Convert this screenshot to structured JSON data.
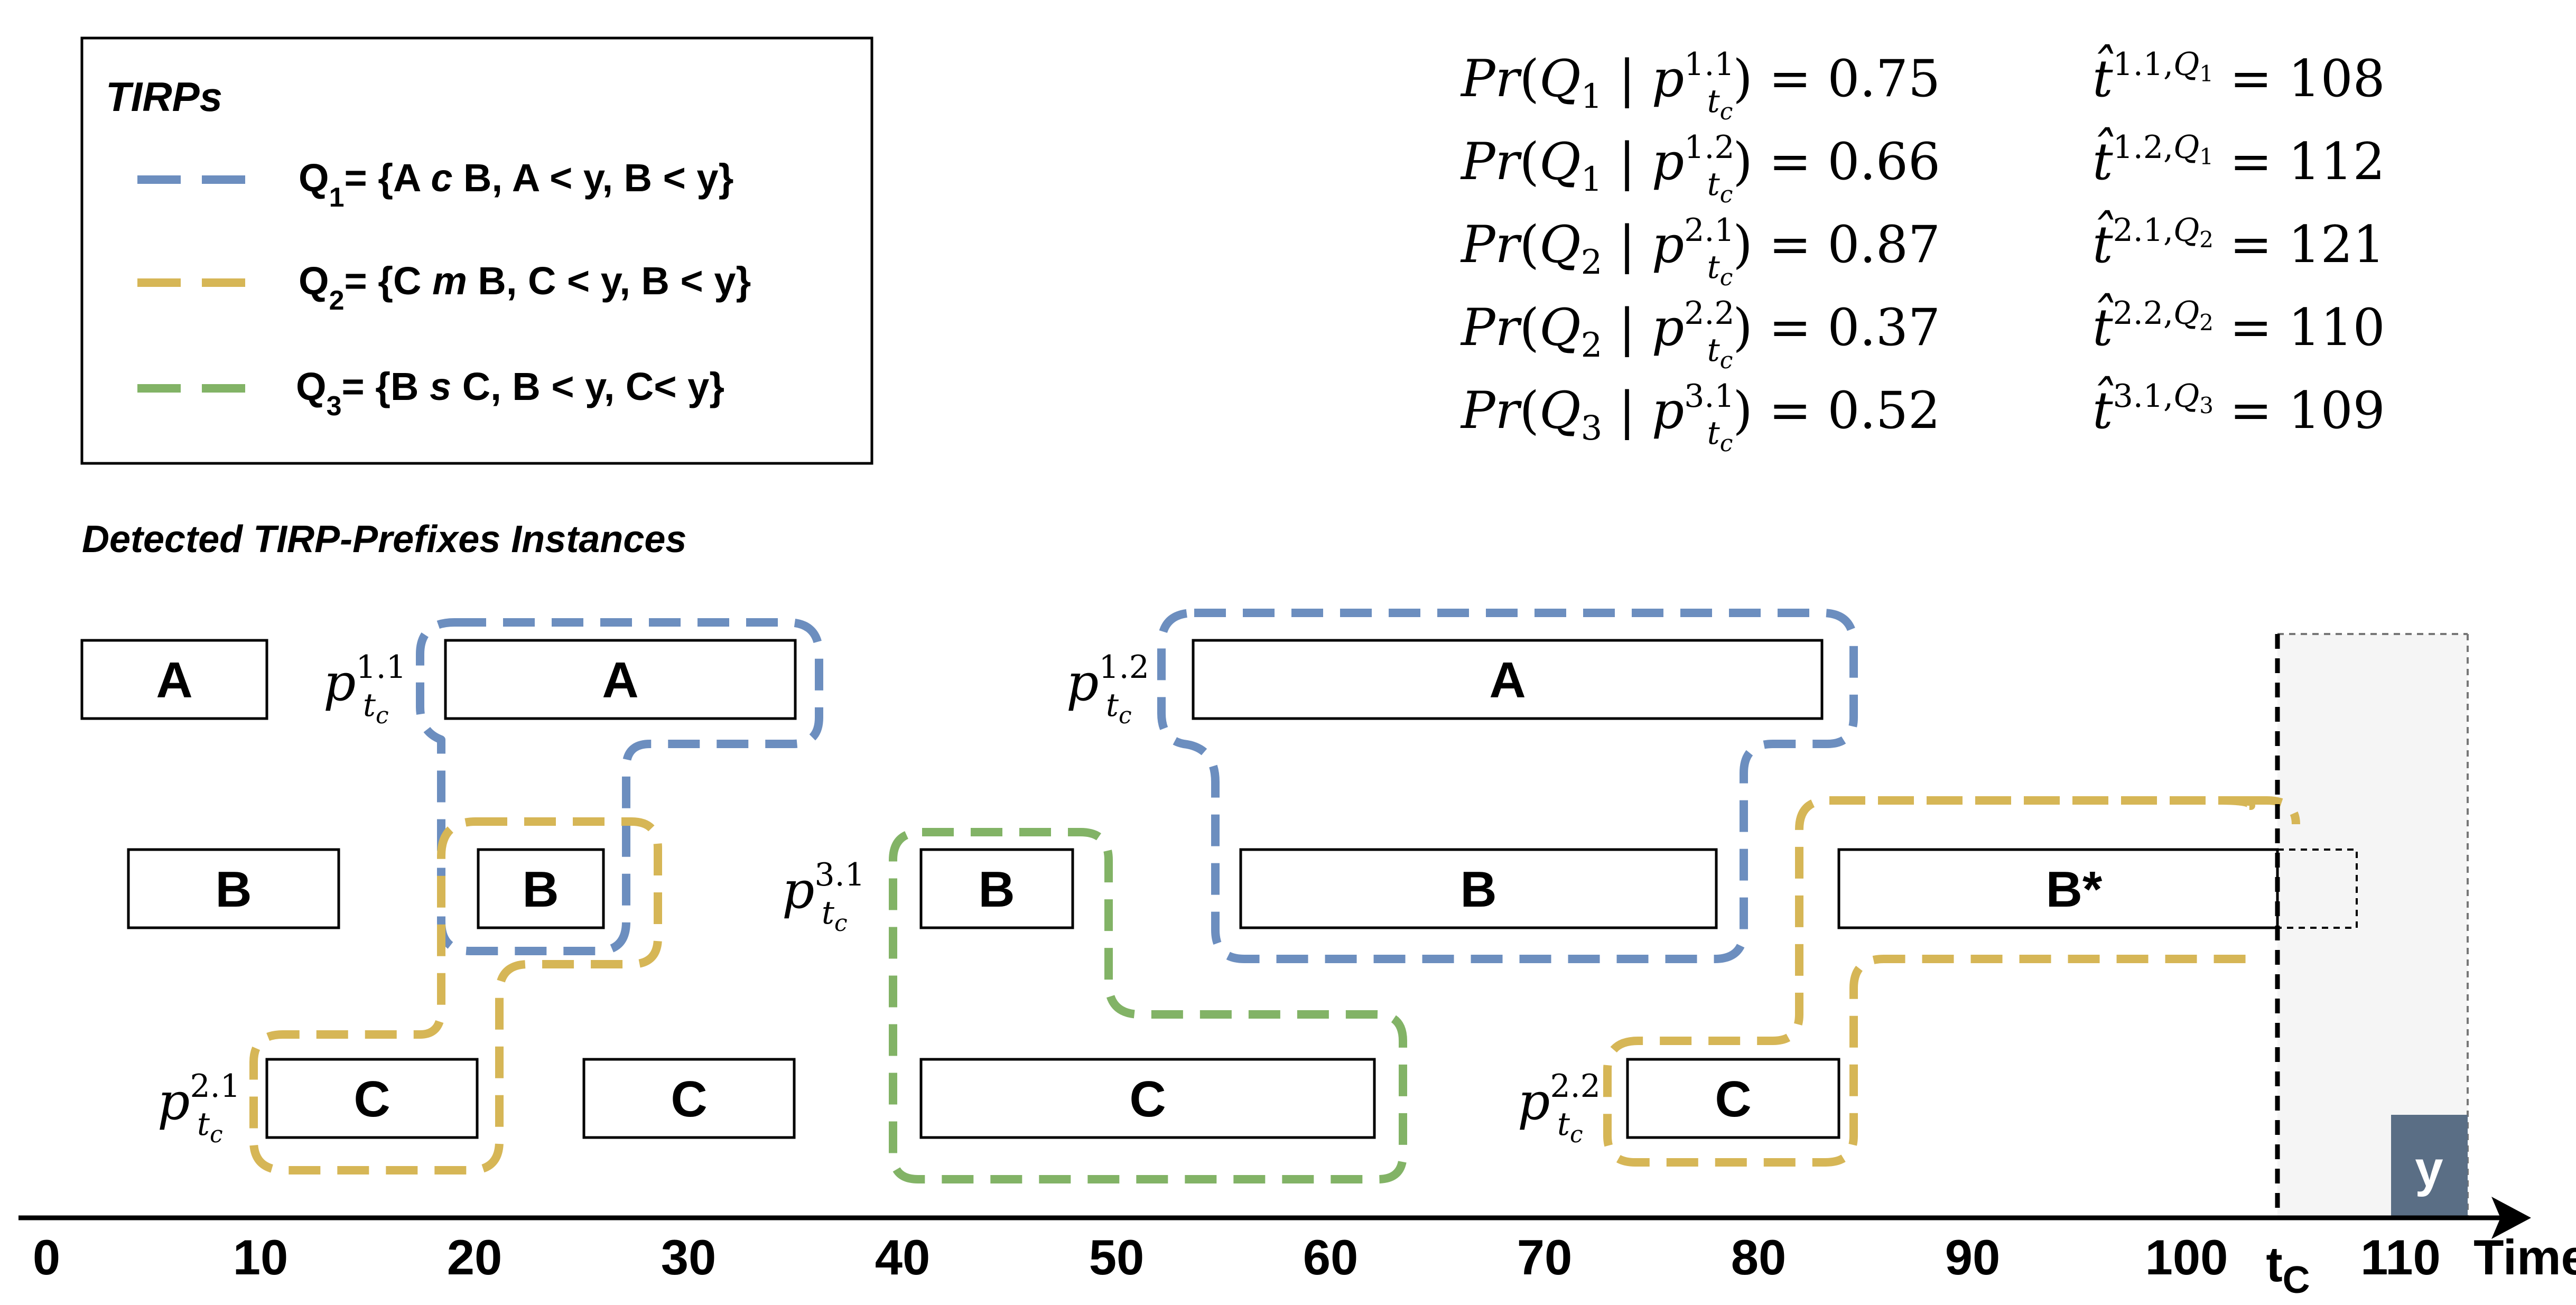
{
  "legend": {
    "title": "TIRPs",
    "items": [
      {
        "id": "Q1",
        "name": "Q",
        "sub": "1",
        "rest": "= {A ",
        "rel": "c",
        "after": " B, A < y, B < y}",
        "color": "#6c8ebf"
      },
      {
        "id": "Q2",
        "name": "Q",
        "sub": "2",
        "rest": "= {C ",
        "rel": "m",
        "after": " B, C < y, B < y}",
        "color": "#d6b656"
      },
      {
        "id": "Q3",
        "name": "Q",
        "sub": "3",
        "rest": "= {B ",
        "rel": "s",
        "after": " C, B < y, C< y}",
        "color": "#82b366"
      }
    ]
  },
  "probabilities": [
    {
      "q": "1",
      "p": "1.1",
      "prob": "0.75",
      "t": "1.1",
      "tq": "1",
      "tval": "108"
    },
    {
      "q": "1",
      "p": "1.2",
      "prob": "0.66",
      "t": "1.2",
      "tq": "1",
      "tval": "112"
    },
    {
      "q": "2",
      "p": "2.1",
      "prob": "0.87",
      "t": "2.1",
      "tq": "2",
      "tval": "121"
    },
    {
      "q": "2",
      "p": "2.2",
      "prob": "0.37",
      "t": "2.2",
      "tq": "2",
      "tval": "110"
    },
    {
      "q": "3",
      "p": "3.1",
      "prob": "0.52",
      "t": "3.1",
      "tq": "3",
      "tval": "109"
    }
  ],
  "section_title": "Detected TIRP-Prefixes Instances",
  "axis": {
    "label": "Time",
    "ticks": [
      "0",
      "10",
      "20",
      "30",
      "40",
      "50",
      "60",
      "70",
      "80",
      "90",
      "100",
      "110"
    ],
    "tc_label": "t",
    "tc_sub": "C",
    "outcome_label": "y"
  },
  "intervals": [
    {
      "label": "A",
      "row": 0
    },
    {
      "label": "A",
      "row": 0
    },
    {
      "label": "A",
      "row": 0
    },
    {
      "label": "B",
      "row": 1
    },
    {
      "label": "B",
      "row": 1
    },
    {
      "label": "B",
      "row": 1
    },
    {
      "label": "B",
      "row": 1
    },
    {
      "label": "B*",
      "row": 1
    },
    {
      "label": "C",
      "row": 2
    },
    {
      "label": "C",
      "row": 2
    },
    {
      "label": "C",
      "row": 2
    },
    {
      "label": "C",
      "row": 2
    }
  ],
  "prefix_labels": [
    {
      "id": "p11",
      "sup": "1.1"
    },
    {
      "id": "p12",
      "sup": "1.2"
    },
    {
      "id": "p31",
      "sup": "3.1"
    },
    {
      "id": "p21",
      "sup": "2.1"
    },
    {
      "id": "p22",
      "sup": "2.2"
    }
  ],
  "colors": {
    "q1": "#6c8ebf",
    "q2": "#d6b656",
    "q3": "#82b366",
    "future": "#f5f5f5",
    "outcome": "#5a6e85"
  }
}
